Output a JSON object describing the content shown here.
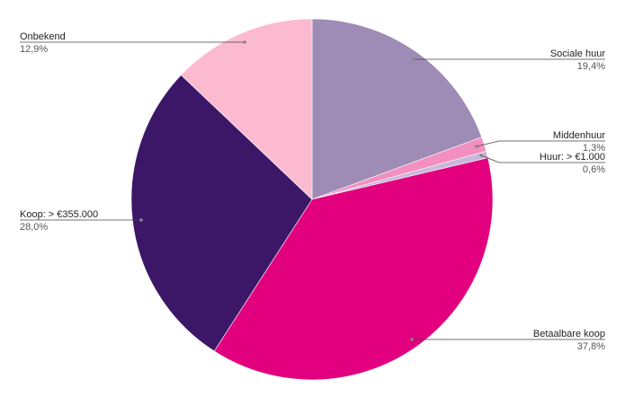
{
  "chart_data": {
    "type": "pie",
    "start": "top",
    "direction": "clockwise",
    "legend": "none",
    "slices": [
      {
        "label": "Sociale huur",
        "value": 19.4,
        "value_label": "19,4%",
        "color": "#9e8cb6"
      },
      {
        "label": "Middenhuur",
        "value": 1.3,
        "value_label": "1,3%",
        "color": "#f38fc0"
      },
      {
        "label": "Huur: > €1.000",
        "value": 0.6,
        "value_label": "0,6%",
        "color": "#c8b8da"
      },
      {
        "label": "Betaalbare koop",
        "value": 37.8,
        "value_label": "37,8%",
        "color": "#e2007e"
      },
      {
        "label": "Koop: > €355.000",
        "value": 28.0,
        "value_label": "28,0%",
        "color": "#3c1768"
      },
      {
        "label": "Onbekend",
        "value": 12.9,
        "value_label": "12,9%",
        "color": "#fcbad0"
      }
    ]
  }
}
